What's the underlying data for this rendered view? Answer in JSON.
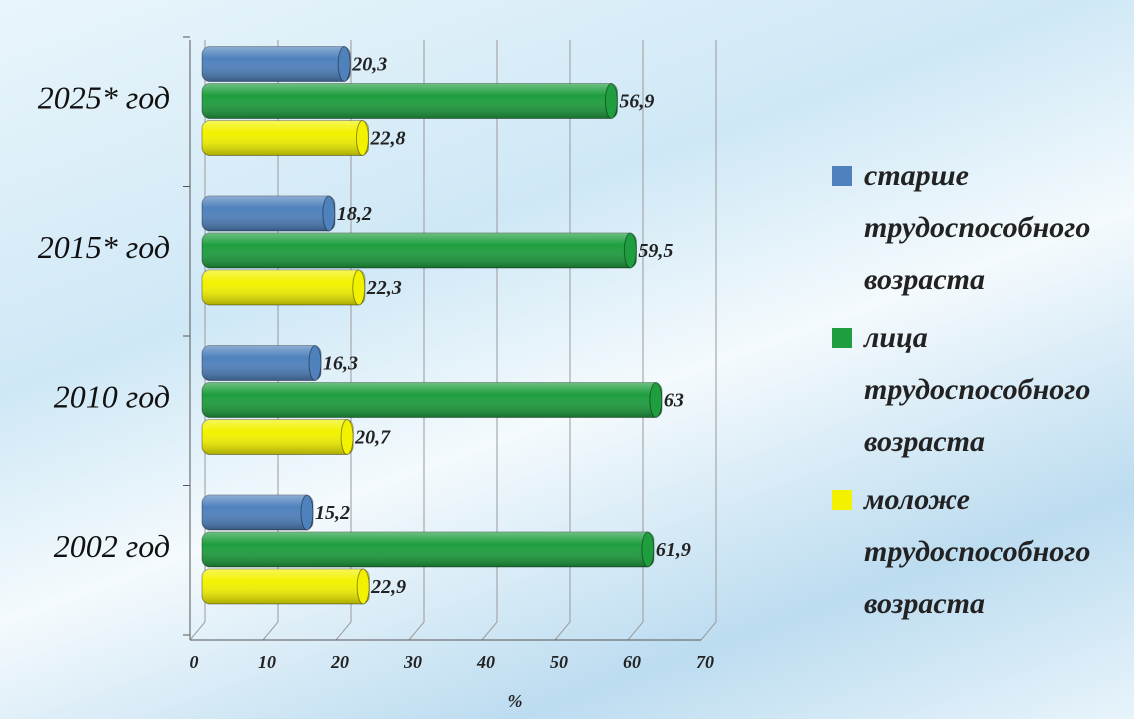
{
  "chart_data": {
    "type": "bar",
    "orientation": "horizontal",
    "categories": [
      "2002 год",
      "2010 год",
      "2015* год",
      "2025* год"
    ],
    "series": [
      {
        "name": "старше трудоспособного возраста",
        "color": "#4f81bd",
        "values": [
          15.2,
          16.3,
          18.2,
          20.3
        ],
        "value_labels": [
          "15,2",
          "16,3",
          "18,2",
          "20,3"
        ]
      },
      {
        "name": "лица трудоспособного возраста",
        "color": "#1e9e3e",
        "values": [
          61.9,
          63,
          59.5,
          56.9
        ],
        "value_labels": [
          "61,9",
          "63",
          "59,5",
          "56,9"
        ]
      },
      {
        "name": "моложе трудоспособного возраста",
        "color": "#f2f200",
        "values": [
          22.9,
          20.7,
          22.3,
          22.8
        ],
        "value_labels": [
          "22,9",
          "20,7",
          "22,3",
          "22,8"
        ]
      }
    ],
    "x_label": "%",
    "xlim": [
      0,
      70
    ],
    "xticks": [
      0,
      10,
      20,
      30,
      40,
      50,
      60,
      70
    ],
    "grid": true,
    "legend": "right"
  }
}
